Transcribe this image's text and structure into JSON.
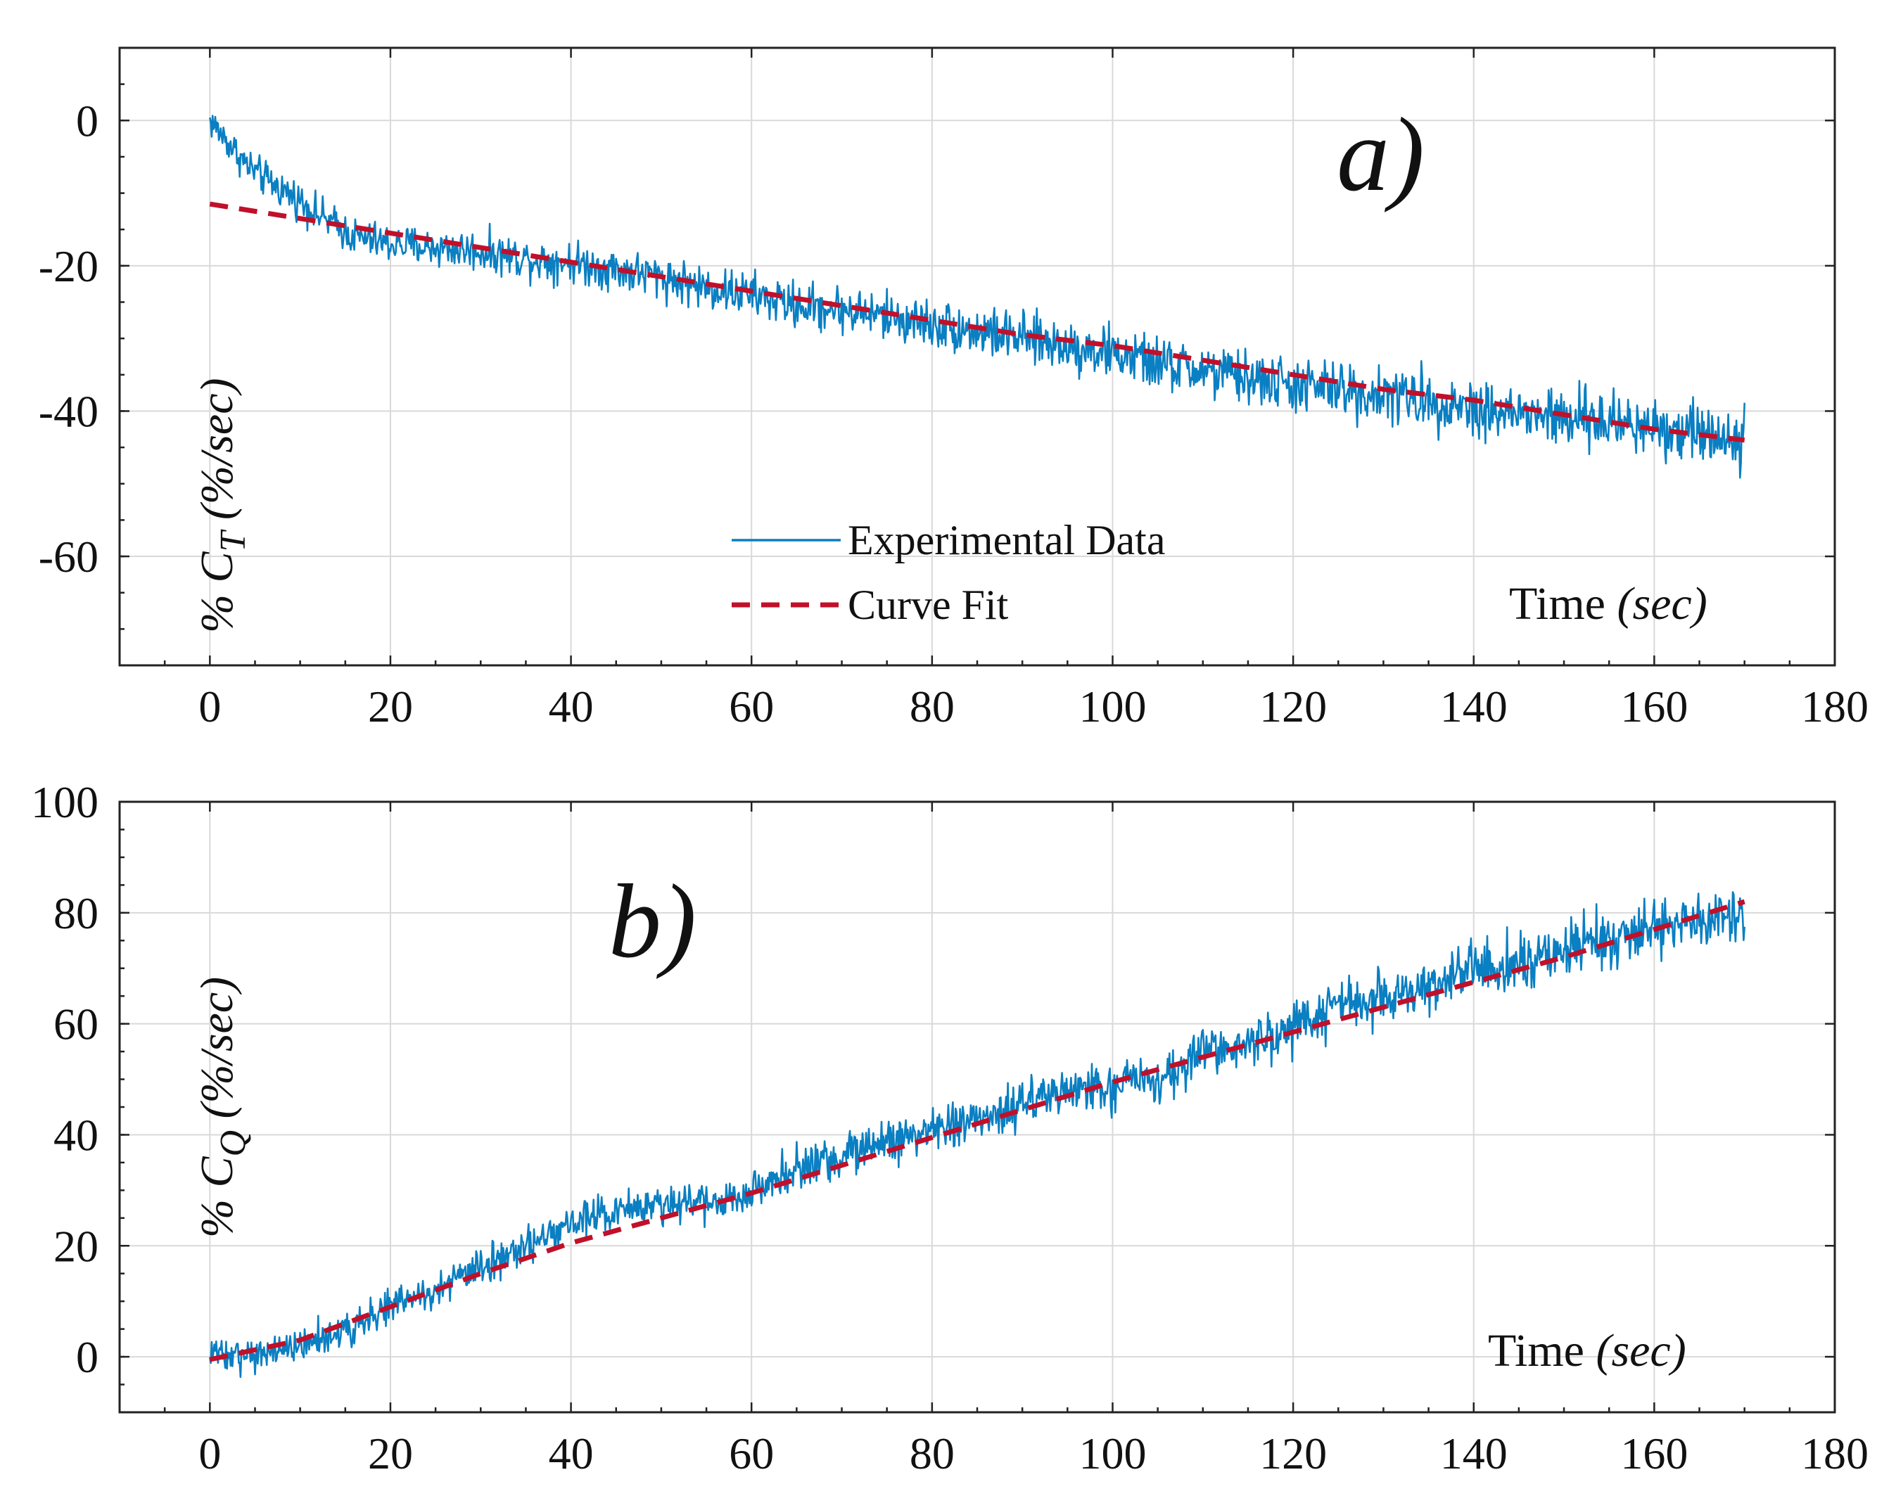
{
  "colors": {
    "experimental": "#0a7fc2",
    "fit": "#c0102a",
    "grid": "#d9d9d9",
    "axis": "#222222"
  },
  "chart_data": [
    {
      "type": "line",
      "panel_label": "a)",
      "ylabel": {
        "prefix": "% C",
        "subscript": "T",
        "unit": " (%/sec)"
      },
      "xlabel": {
        "text": "Time ",
        "unit": "(sec)"
      },
      "xlim": [
        -10,
        180
      ],
      "ylim": [
        -75,
        10
      ],
      "xticks": [
        0,
        20,
        40,
        60,
        80,
        100,
        120,
        140,
        160,
        180
      ],
      "yticks": [
        0,
        -20,
        -40,
        -60
      ],
      "ytick_labels": [
        "0",
        "-20",
        "-40",
        "-60"
      ],
      "grid": true,
      "legend": {
        "position": "bottom-center",
        "entries": [
          "Experimental Data",
          "Curve Fit"
        ]
      },
      "series": [
        {
          "name": "Experimental Data",
          "style": "solid",
          "noise": 2.6,
          "x": [
            0,
            2,
            4,
            6,
            8,
            10,
            12,
            14,
            16,
            20,
            25,
            30,
            35,
            40,
            45,
            50,
            55,
            60,
            65,
            70,
            75,
            80,
            85,
            90,
            95,
            100,
            105,
            110,
            115,
            120,
            125,
            130,
            135,
            140,
            145,
            150,
            155,
            160,
            165,
            170
          ],
          "y": [
            0,
            -3,
            -6,
            -8,
            -9.5,
            -11,
            -13,
            -14.5,
            -16,
            -17,
            -17.5,
            -18,
            -19,
            -19.5,
            -20.5,
            -21.5,
            -23,
            -24,
            -25.5,
            -26,
            -27,
            -28,
            -29,
            -30,
            -31,
            -32,
            -33.5,
            -34.5,
            -35.5,
            -36.5,
            -37,
            -37.8,
            -38.5,
            -39.5,
            -40.5,
            -41,
            -41.5,
            -42,
            -43,
            -43.5
          ]
        },
        {
          "name": "Curve Fit",
          "style": "dashed",
          "x": [
            0,
            10,
            20,
            30,
            40,
            50,
            60,
            70,
            80,
            90,
            100,
            110,
            120,
            130,
            140,
            150,
            160,
            170
          ],
          "y": [
            -11.5,
            -13.5,
            -15.5,
            -17.5,
            -19.5,
            -21.5,
            -23.5,
            -25.5,
            -27.5,
            -29.5,
            -31,
            -33,
            -35,
            -37,
            -38.5,
            -40.5,
            -42.5,
            -44
          ]
        }
      ]
    },
    {
      "type": "line",
      "panel_label": "b)",
      "ylabel": {
        "prefix": "% C",
        "subscript": "Q",
        "unit": " (%/sec)"
      },
      "xlabel": {
        "text": "Time ",
        "unit": "(sec)"
      },
      "xlim": [
        -10,
        180
      ],
      "ylim": [
        -10,
        100
      ],
      "xticks": [
        0,
        20,
        40,
        60,
        80,
        100,
        120,
        140,
        160,
        180
      ],
      "yticks": [
        0,
        20,
        40,
        60,
        80,
        100
      ],
      "ytick_labels": [
        "0",
        "20",
        "40",
        "60",
        "80",
        "100"
      ],
      "grid": true,
      "series": [
        {
          "name": "Experimental Data",
          "style": "solid",
          "noise": 3.2,
          "x": [
            0,
            5,
            10,
            15,
            20,
            25,
            30,
            35,
            40,
            45,
            50,
            55,
            60,
            65,
            70,
            75,
            80,
            85,
            90,
            95,
            100,
            105,
            110,
            115,
            120,
            125,
            130,
            135,
            140,
            145,
            150,
            155,
            160,
            165,
            170
          ],
          "y": [
            0,
            0,
            2,
            5,
            9,
            12,
            16,
            20,
            24,
            26.5,
            27,
            27.5,
            30,
            34,
            36,
            39,
            41,
            43,
            45.5,
            48,
            49,
            50,
            55,
            56,
            59,
            63,
            65,
            67,
            70,
            71,
            73,
            75,
            78,
            79,
            80
          ]
        },
        {
          "name": "Curve Fit",
          "style": "dashed",
          "x": [
            0,
            10,
            20,
            30,
            40,
            50,
            60,
            70,
            80,
            90,
            100,
            110,
            120,
            130,
            140,
            150,
            160,
            170
          ],
          "y": [
            -0.5,
            3,
            9,
            15,
            20.5,
            25,
            29.5,
            34.5,
            39.5,
            44.5,
            49.5,
            54,
            58.5,
            63,
            67.5,
            72,
            77,
            82
          ]
        }
      ]
    }
  ]
}
